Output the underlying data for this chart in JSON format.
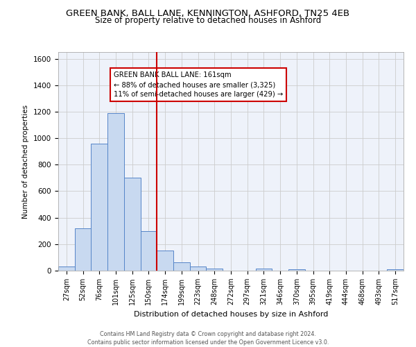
{
  "title": "GREEN BANK, BALL LANE, KENNINGTON, ASHFORD, TN25 4EB",
  "subtitle": "Size of property relative to detached houses in Ashford",
  "xlabel": "Distribution of detached houses by size in Ashford",
  "ylabel": "Number of detached properties",
  "categories": [
    "27sqm",
    "52sqm",
    "76sqm",
    "101sqm",
    "125sqm",
    "150sqm",
    "174sqm",
    "199sqm",
    "223sqm",
    "248sqm",
    "272sqm",
    "297sqm",
    "321sqm",
    "346sqm",
    "370sqm",
    "395sqm",
    "419sqm",
    "444sqm",
    "468sqm",
    "493sqm",
    "517sqm"
  ],
  "values": [
    30,
    320,
    960,
    1190,
    700,
    300,
    150,
    65,
    30,
    15,
    0,
    0,
    15,
    0,
    10,
    0,
    0,
    0,
    0,
    0,
    10
  ],
  "bar_color": "#c8d9f0",
  "bar_edge_color": "#5585c8",
  "bar_width": 1.0,
  "property_label": "GREEN BANK BALL LANE: 161sqm",
  "annotation_line1": "← 88% of detached houses are smaller (3,325)",
  "annotation_line2": "11% of semi-detached houses are larger (429) →",
  "red_line_color": "#cc0000",
  "annotation_box_color": "#ffffff",
  "annotation_box_edge": "#cc0000",
  "ylim": [
    0,
    1650
  ],
  "yticks": [
    0,
    200,
    400,
    600,
    800,
    1000,
    1200,
    1400,
    1600
  ],
  "grid_color": "#cccccc",
  "background_color": "#eef2fa",
  "footer_line1": "Contains HM Land Registry data © Crown copyright and database right 2024.",
  "footer_line2": "Contains public sector information licensed under the Open Government Licence v3.0."
}
